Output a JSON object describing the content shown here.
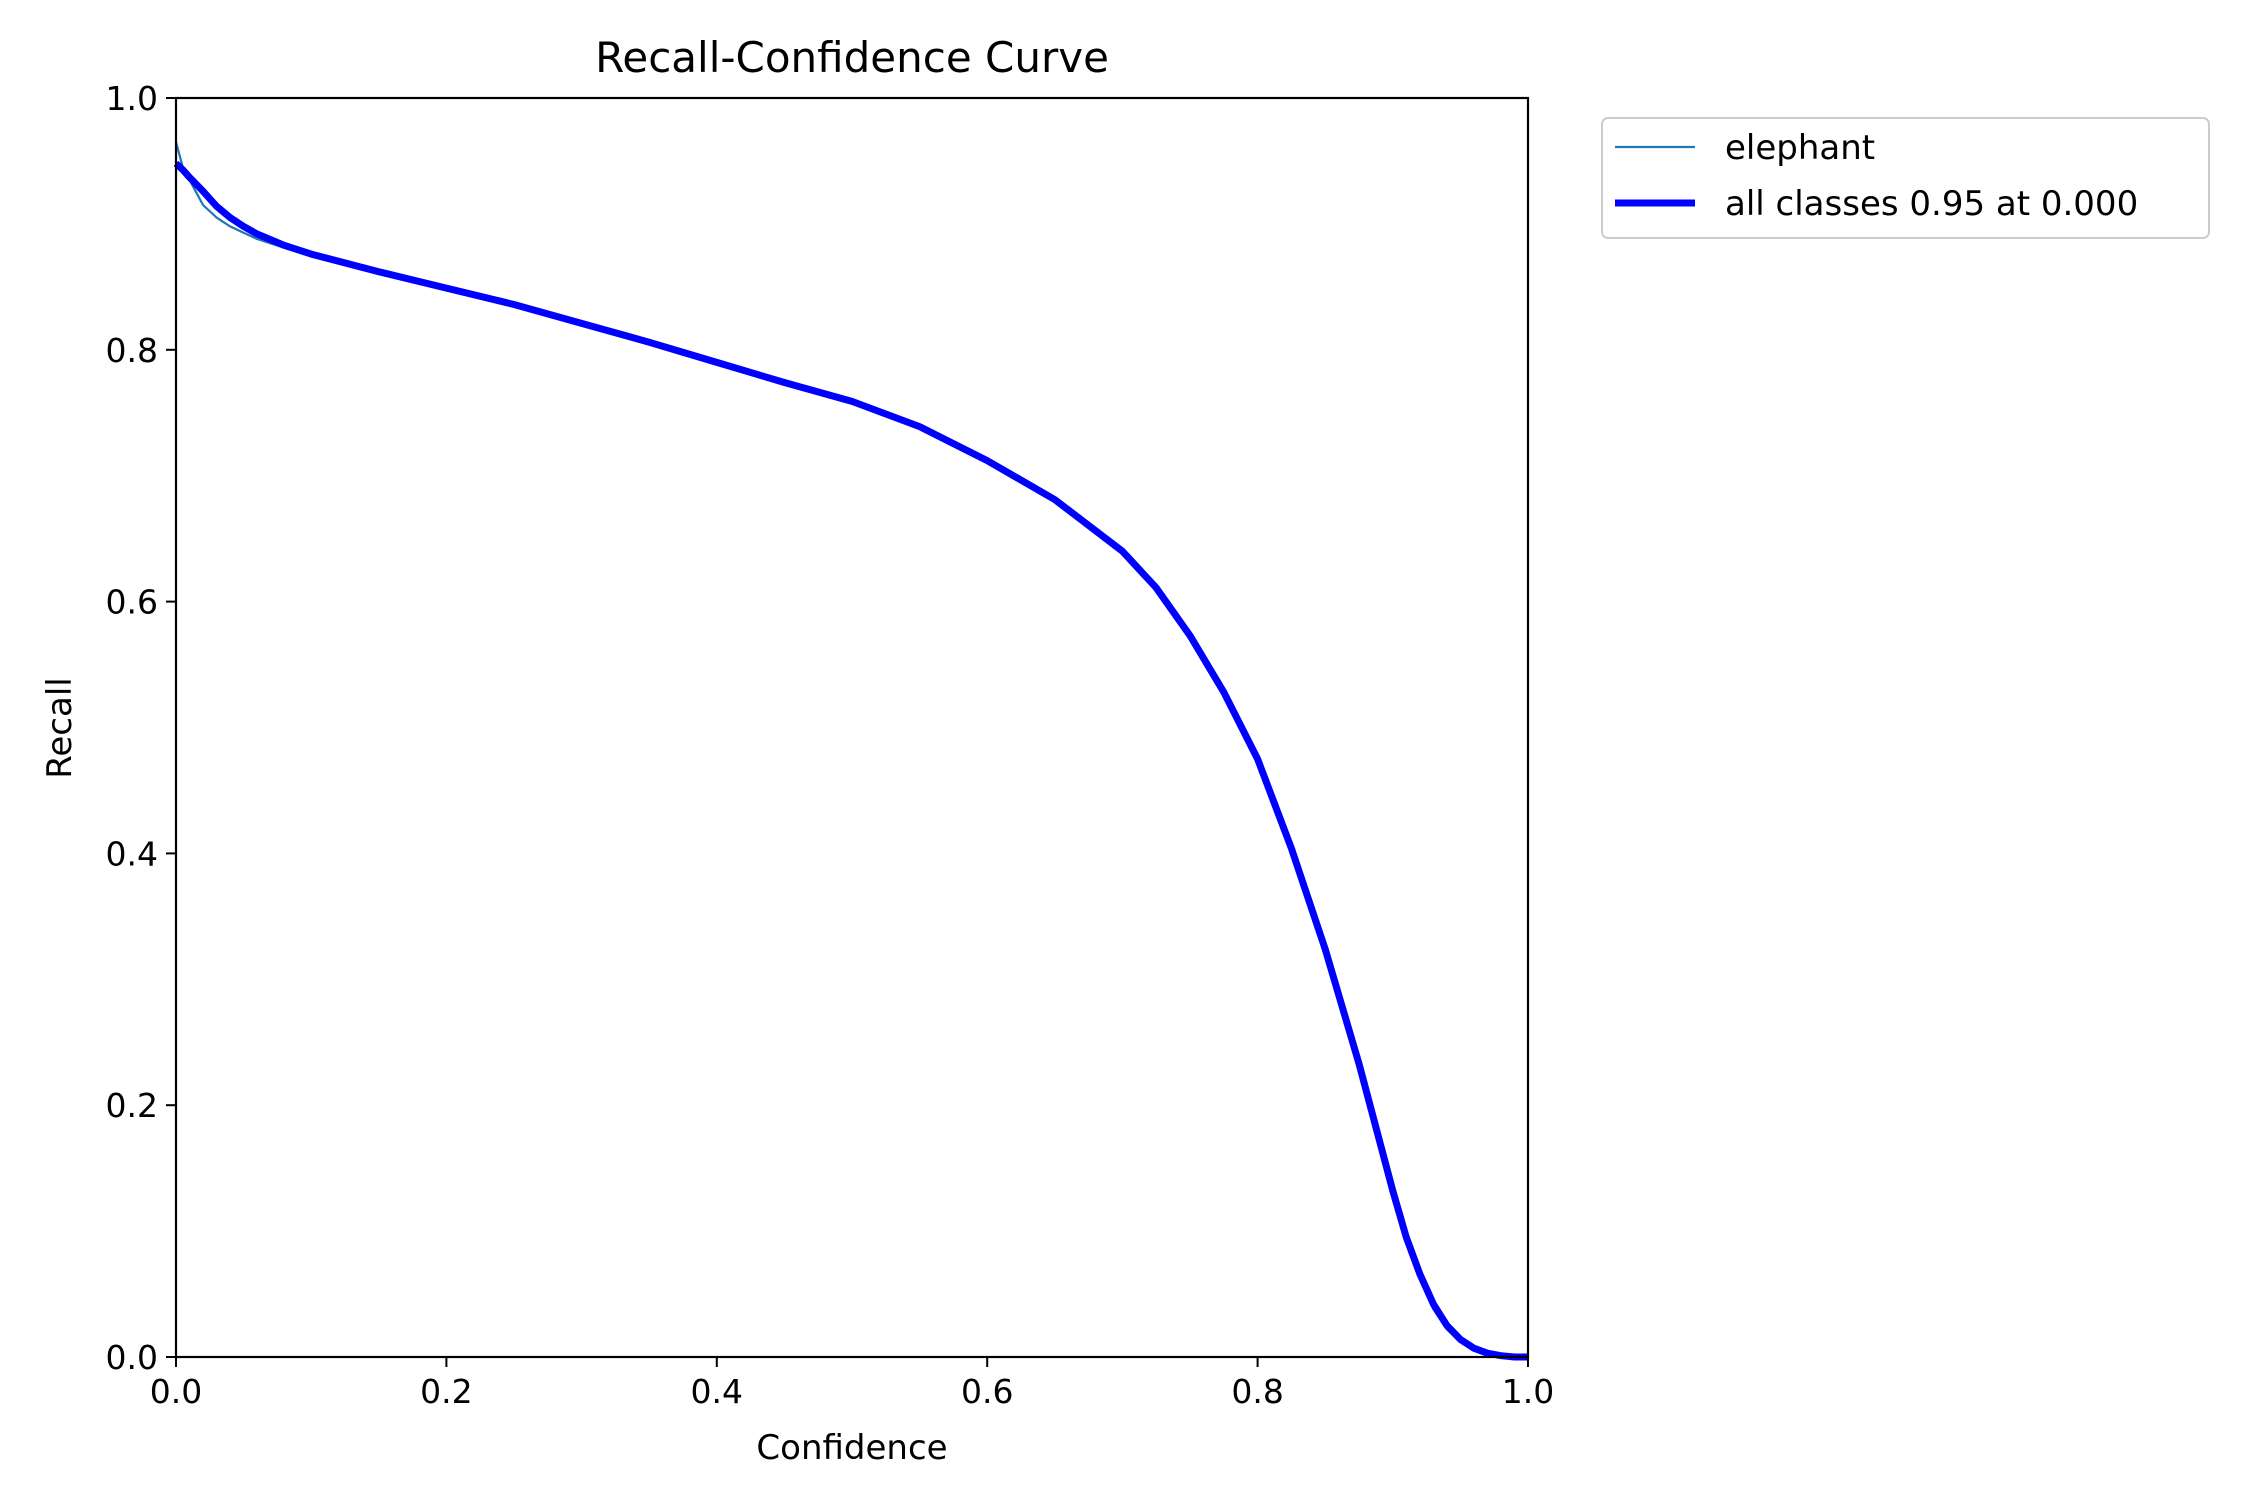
{
  "chart_data": {
    "type": "line",
    "title": "Recall-Confidence Curve",
    "xlabel": "Confidence",
    "ylabel": "Recall",
    "xlim": [
      0,
      1
    ],
    "ylim": [
      0,
      1
    ],
    "xticks": [
      "0.0",
      "0.2",
      "0.4",
      "0.6",
      "0.8",
      "1.0"
    ],
    "yticks": [
      "0.0",
      "0.2",
      "0.4",
      "0.6",
      "0.8",
      "1.0"
    ],
    "grid": false,
    "legend_position": "outside-top-right",
    "series": [
      {
        "name": "elephant",
        "color": "#1f77b4",
        "linewidth": "thin",
        "x": [
          0.0,
          0.005,
          0.01,
          0.02,
          0.03,
          0.04,
          0.05,
          0.06,
          0.08,
          0.1,
          0.15,
          0.2,
          0.25,
          0.3,
          0.35,
          0.4,
          0.45,
          0.5,
          0.55,
          0.6,
          0.65,
          0.7,
          0.725,
          0.75,
          0.775,
          0.8,
          0.825,
          0.85,
          0.875,
          0.9,
          0.91,
          0.92,
          0.93,
          0.94,
          0.95,
          0.96,
          0.97,
          0.98,
          0.99,
          1.0
        ],
        "y": [
          0.965,
          0.945,
          0.935,
          0.915,
          0.905,
          0.898,
          0.893,
          0.888,
          0.881,
          0.875,
          0.863,
          0.849,
          0.836,
          0.82,
          0.806,
          0.79,
          0.774,
          0.76,
          0.74,
          0.712,
          0.68,
          0.64,
          0.61,
          0.573,
          0.528,
          0.475,
          0.405,
          0.325,
          0.235,
          0.13,
          0.095,
          0.063,
          0.038,
          0.022,
          0.012,
          0.005,
          0.002,
          0.001,
          0.0,
          0.0
        ]
      },
      {
        "name": "all classes 0.95 at 0.000",
        "color": "#0000ff",
        "linewidth": "thick",
        "x": [
          0.0,
          0.005,
          0.01,
          0.02,
          0.03,
          0.04,
          0.05,
          0.06,
          0.08,
          0.1,
          0.15,
          0.2,
          0.25,
          0.3,
          0.35,
          0.4,
          0.45,
          0.5,
          0.55,
          0.6,
          0.65,
          0.7,
          0.725,
          0.75,
          0.775,
          0.8,
          0.825,
          0.85,
          0.875,
          0.9,
          0.91,
          0.92,
          0.93,
          0.94,
          0.95,
          0.96,
          0.97,
          0.98,
          0.99,
          1.0
        ],
        "y": [
          0.948,
          0.943,
          0.937,
          0.926,
          0.914,
          0.905,
          0.898,
          0.892,
          0.883,
          0.876,
          0.862,
          0.849,
          0.836,
          0.821,
          0.806,
          0.79,
          0.774,
          0.759,
          0.739,
          0.712,
          0.681,
          0.64,
          0.611,
          0.573,
          0.528,
          0.475,
          0.404,
          0.324,
          0.233,
          0.132,
          0.095,
          0.066,
          0.042,
          0.025,
          0.014,
          0.007,
          0.003,
          0.001,
          0.0,
          0.0
        ]
      }
    ]
  }
}
